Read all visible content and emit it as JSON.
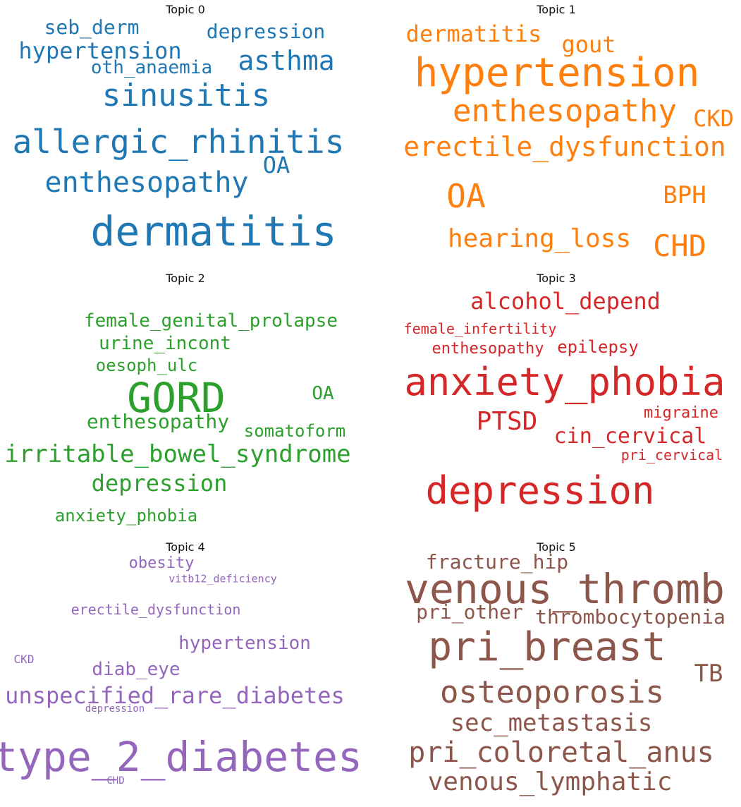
{
  "chart_data": [
    {
      "type": "wordcloud",
      "title": "Topic 0",
      "color": "#1f77b4",
      "words": [
        {
          "text": "dermatitis",
          "size": 58
        },
        {
          "text": "allergic_rhinitis",
          "size": 46
        },
        {
          "text": "sinusitis",
          "size": 44
        },
        {
          "text": "enthesopathy",
          "size": 40
        },
        {
          "text": "asthma",
          "size": 38
        },
        {
          "text": "hypertension",
          "size": 32
        },
        {
          "text": "OA",
          "size": 32
        },
        {
          "text": "depression",
          "size": 28
        },
        {
          "text": "seb_derm",
          "size": 28
        },
        {
          "text": "oth_anaemia",
          "size": 26
        }
      ]
    },
    {
      "type": "wordcloud",
      "title": "Topic 1",
      "color": "#ff7f0e",
      "words": [
        {
          "text": "hypertension",
          "size": 56
        },
        {
          "text": "OA",
          "size": 46
        },
        {
          "text": "enthesopathy",
          "size": 44
        },
        {
          "text": "CHD",
          "size": 42
        },
        {
          "text": "erectile_dysfunction",
          "size": 38
        },
        {
          "text": "hearing_loss",
          "size": 36
        },
        {
          "text": "BPH",
          "size": 34
        },
        {
          "text": "gout",
          "size": 32
        },
        {
          "text": "dermatitis",
          "size": 32
        },
        {
          "text": "CKD",
          "size": 32
        }
      ]
    },
    {
      "type": "wordcloud",
      "title": "Topic 2",
      "color": "#2ca02c",
      "words": [
        {
          "text": "GORD",
          "size": 58
        },
        {
          "text": "irritable_bowel_syndrome",
          "size": 34
        },
        {
          "text": "depression",
          "size": 32
        },
        {
          "text": "enthesopathy",
          "size": 28
        },
        {
          "text": "female_genital_prolapse",
          "size": 26
        },
        {
          "text": "urine_incont",
          "size": 26
        },
        {
          "text": "OA",
          "size": 26
        },
        {
          "text": "anxiety_phobia",
          "size": 24
        },
        {
          "text": "oesoph_ulc",
          "size": 24
        },
        {
          "text": "somatoform",
          "size": 24
        }
      ]
    },
    {
      "type": "wordcloud",
      "title": "Topic 3",
      "color": "#d62728",
      "words": [
        {
          "text": "anxiety_phobia",
          "size": 54
        },
        {
          "text": "depression",
          "size": 54
        },
        {
          "text": "PTSD",
          "size": 36
        },
        {
          "text": "alcohol_depend",
          "size": 32
        },
        {
          "text": "cin_cervical",
          "size": 30
        },
        {
          "text": "epilepsy",
          "size": 24
        },
        {
          "text": "enthesopathy",
          "size": 22
        },
        {
          "text": "migraine",
          "size": 22
        },
        {
          "text": "female_infertility",
          "size": 20
        },
        {
          "text": "pri_cervical",
          "size": 20
        }
      ]
    },
    {
      "type": "wordcloud",
      "title": "Topic 4",
      "color": "#9467bd",
      "words": [
        {
          "text": "type_2_diabetes",
          "size": 58
        },
        {
          "text": "unspecified_rare_diabetes",
          "size": 32
        },
        {
          "text": "hypertension",
          "size": 26
        },
        {
          "text": "diab_eye",
          "size": 26
        },
        {
          "text": "obesity",
          "size": 22
        },
        {
          "text": "erectile_dysfunction",
          "size": 20
        },
        {
          "text": "vitb12_deficiency",
          "size": 15
        },
        {
          "text": "CKD",
          "size": 16
        },
        {
          "text": "depression",
          "size": 14
        },
        {
          "text": "CHD",
          "size": 14
        }
      ]
    },
    {
      "type": "wordcloud",
      "title": "Topic 5",
      "color": "#8c564b",
      "words": [
        {
          "text": "venous_thromb",
          "size": 58
        },
        {
          "text": "pri_breast",
          "size": 56
        },
        {
          "text": "osteoporosis",
          "size": 44
        },
        {
          "text": "pri_coloretal_anus",
          "size": 40
        },
        {
          "text": "venous_lymphatic",
          "size": 36
        },
        {
          "text": "sec_metastasis",
          "size": 34
        },
        {
          "text": "TB",
          "size": 34
        },
        {
          "text": "fracture_hip",
          "size": 28
        },
        {
          "text": "pri_other",
          "size": 28
        },
        {
          "text": "thrombocytopenia",
          "size": 28
        }
      ]
    }
  ]
}
